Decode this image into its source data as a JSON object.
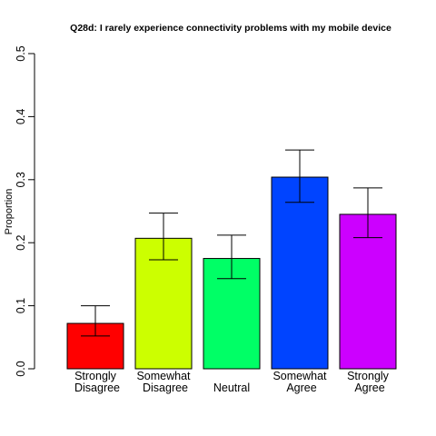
{
  "chart_data": {
    "type": "bar",
    "title": "Q28d: I rarely experience connectivity problems with my mobile device",
    "ylabel": "Proportion",
    "xlabel": "",
    "ylim": [
      0,
      0.5
    ],
    "yticks": [
      "0.0",
      "0.1",
      "0.2",
      "0.3",
      "0.4",
      "0.5"
    ],
    "yticks_values": [
      0,
      0.1,
      0.2,
      0.3,
      0.4,
      0.5
    ],
    "grid": false,
    "legend": "none",
    "categories": [
      {
        "lines": [
          "Strongly",
          "Disagree"
        ],
        "value": 0.072,
        "err_low": 0.052,
        "err_high": 0.1,
        "color": "#ff0000"
      },
      {
        "lines": [
          "Somewhat",
          "Disagree"
        ],
        "value": 0.207,
        "err_low": 0.173,
        "err_high": 0.247,
        "color": "#ccff00"
      },
      {
        "lines": [
          "Neutral"
        ],
        "value": 0.175,
        "err_low": 0.143,
        "err_high": 0.212,
        "color": "#00ff66"
      },
      {
        "lines": [
          "Somewhat",
          "Agree"
        ],
        "value": 0.304,
        "err_low": 0.264,
        "err_high": 0.347,
        "color": "#0044ff"
      },
      {
        "lines": [
          "Strongly",
          "Agree"
        ],
        "value": 0.245,
        "err_low": 0.208,
        "err_high": 0.287,
        "color": "#cc00ff"
      }
    ]
  }
}
